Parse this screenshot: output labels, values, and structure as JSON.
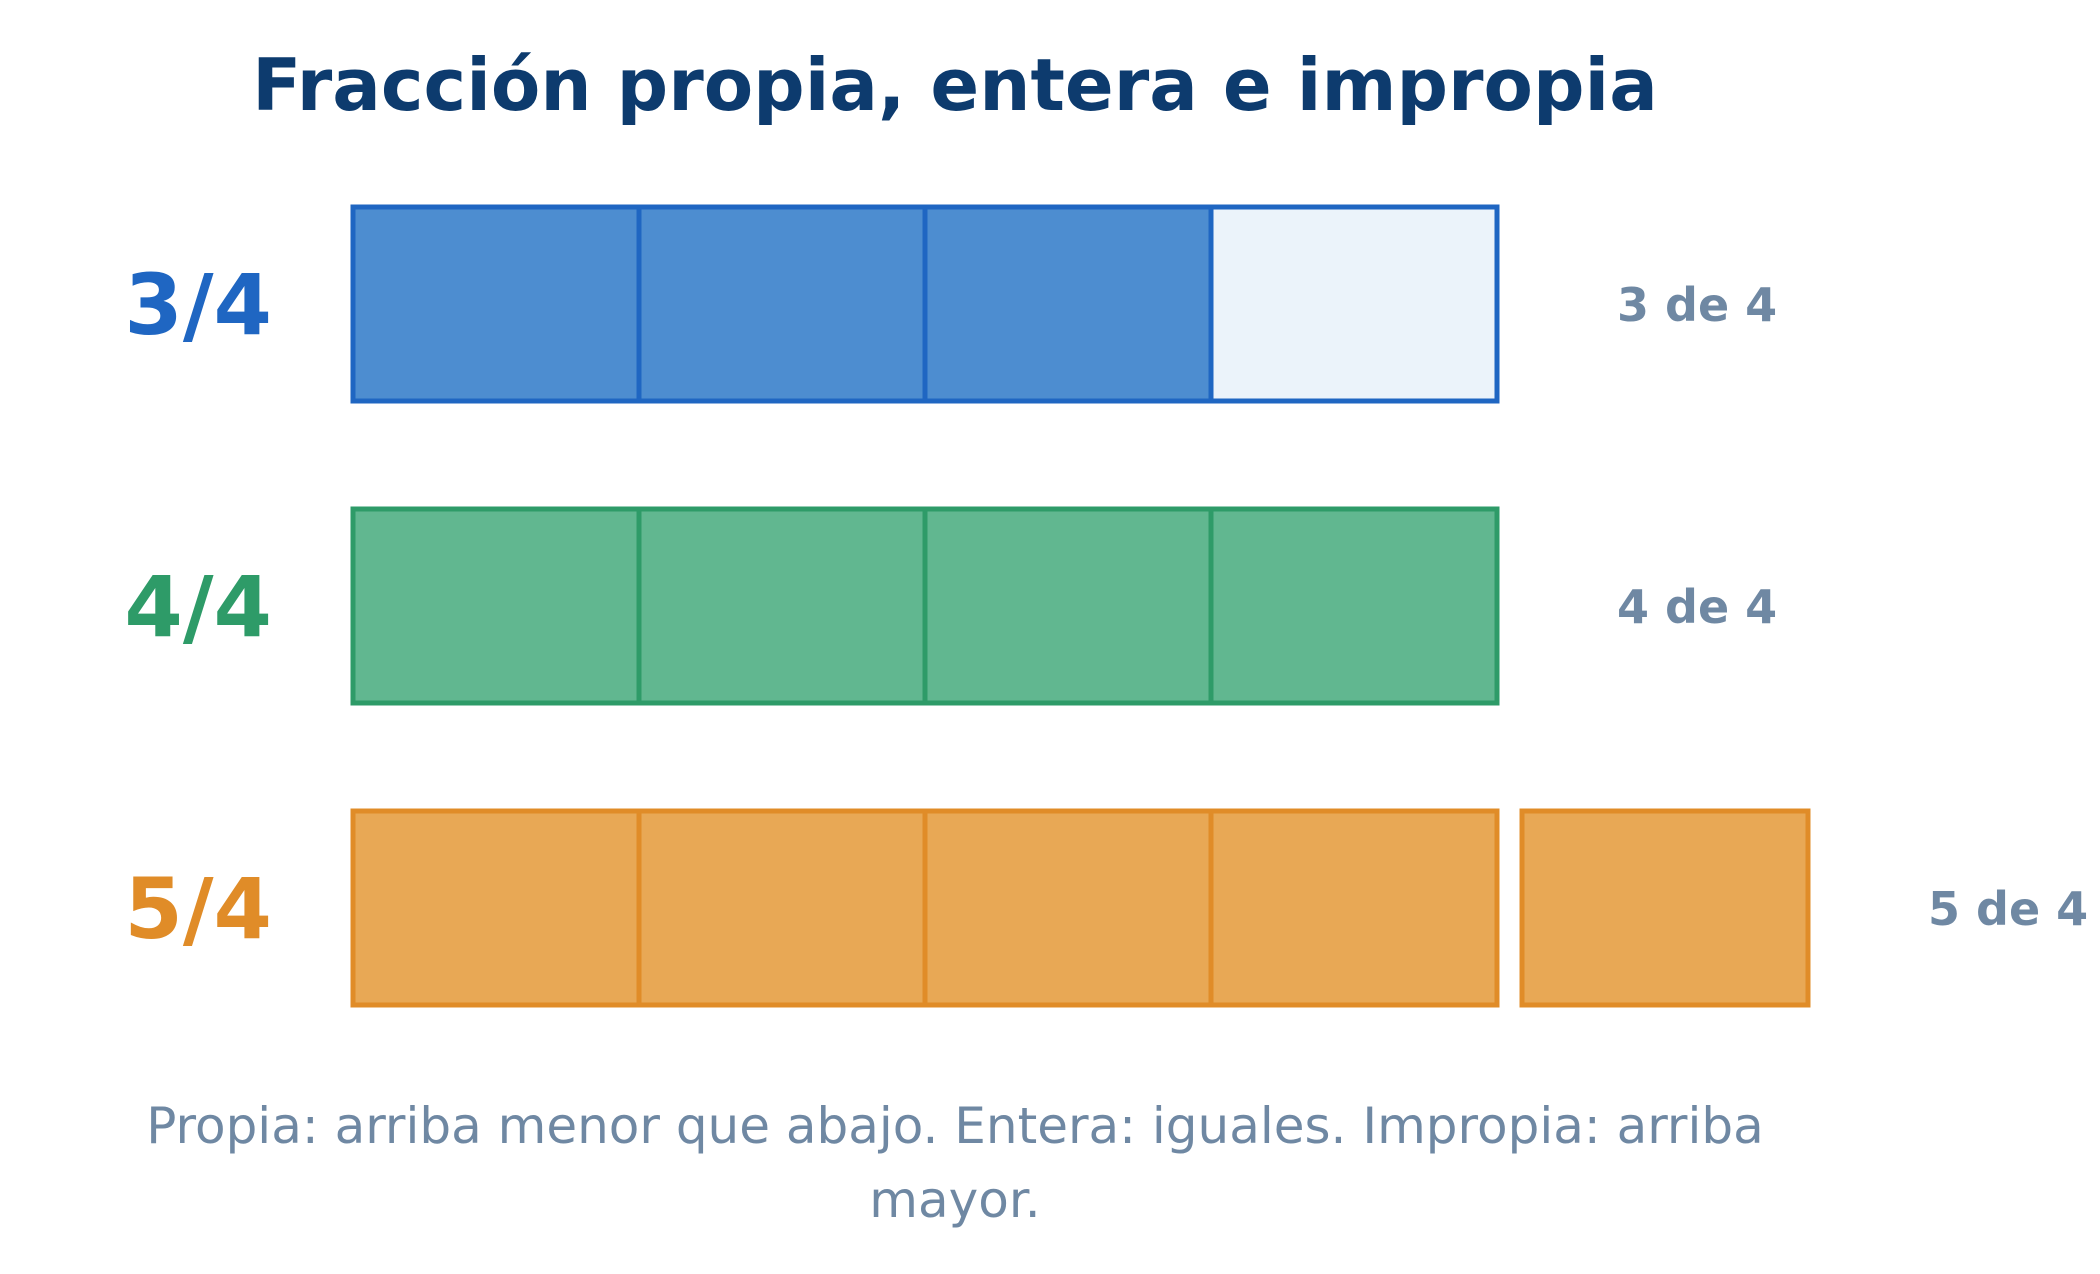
{
  "title": "Fracción propia, entera e impropia",
  "colors": {
    "title": "#0d3b6e",
    "caption": "#6f88a3",
    "count_label": "#6f88a3"
  },
  "rows": [
    {
      "fraction": "3/4",
      "numerator": 3,
      "denominator": 4,
      "count_label": "3 de 4",
      "color": "#1f66c2",
      "fill": "#4d8dd0",
      "empty_fill": "#ebf3fa"
    },
    {
      "fraction": "4/4",
      "numerator": 4,
      "denominator": 4,
      "count_label": "4 de 4",
      "color": "#2e9b68",
      "fill": "#61b790",
      "empty_fill": "#e9f6ef"
    },
    {
      "fraction": "5/4",
      "numerator": 5,
      "denominator": 4,
      "count_label": "5 de 4",
      "color": "#e08c28",
      "fill": "#e8a855",
      "empty_fill": "#fbf1e3"
    }
  ],
  "caption_lines": [
    "Propia: arriba menor que abajo. Entera: iguales. Impropia: arriba",
    "mayor."
  ]
}
